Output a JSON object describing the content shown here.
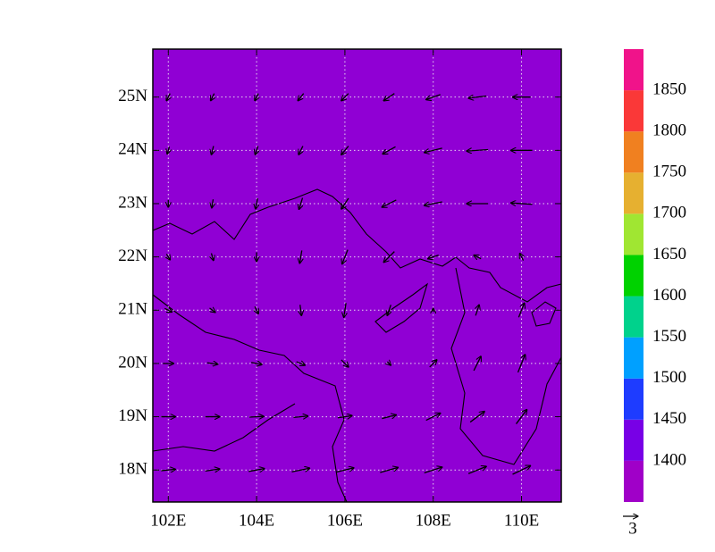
{
  "chart_data": {
    "type": "vector",
    "xlim": [
      101.65,
      110.9
    ],
    "ylim": [
      17.4,
      25.9
    ],
    "xticks": [
      {
        "value": 102,
        "label": "102E"
      },
      {
        "value": 104,
        "label": "104E"
      },
      {
        "value": 106,
        "label": "106E"
      },
      {
        "value": 108,
        "label": "108E"
      },
      {
        "value": 110,
        "label": "110E"
      }
    ],
    "yticks": [
      {
        "value": 18,
        "label": "18N"
      },
      {
        "value": 19,
        "label": "19N"
      },
      {
        "value": 20,
        "label": "20N"
      },
      {
        "value": 21,
        "label": "21N"
      },
      {
        "value": 22,
        "label": "22N"
      },
      {
        "value": 23,
        "label": "23N"
      },
      {
        "value": 24,
        "label": "24N"
      },
      {
        "value": 25,
        "label": "25N"
      }
    ],
    "grid": true,
    "field_color": "#9000d4",
    "vector_color": "#000000",
    "lons": [
      102,
      103,
      104,
      105,
      106,
      107,
      108,
      109,
      110
    ],
    "lats": [
      25,
      24,
      23,
      22,
      21,
      20,
      19,
      18
    ],
    "u": [
      [
        -0.5,
        -0.5,
        -0.5,
        -0.8,
        -1,
        -1.5,
        -2,
        -2.5,
        -2.5
      ],
      [
        -0.3,
        -0.3,
        -0.4,
        -0.6,
        -1,
        -1.8,
        -2.5,
        -3,
        -3
      ],
      [
        0,
        -0.2,
        -0.3,
        -0.5,
        -1,
        -2,
        -2.5,
        -3,
        -3
      ],
      [
        0.5,
        0.3,
        0,
        -0.3,
        -0.8,
        -1.5,
        -1.5,
        -1,
        -0.5
      ],
      [
        1,
        0.8,
        0.5,
        0.2,
        -0.3,
        -0.5,
        0,
        0.5,
        0.8
      ],
      [
        1.5,
        1.5,
        1.5,
        1.2,
        1,
        0.5,
        1,
        1,
        1
      ],
      [
        2,
        2,
        2,
        2,
        2,
        2,
        2,
        2,
        1.5
      ],
      [
        2,
        2,
        2.2,
        2.5,
        2.5,
        2.5,
        2.5,
        2.5,
        2.5
      ]
    ],
    "v": [
      [
        -1,
        -1,
        -1,
        -1,
        -1,
        -1,
        -0.7,
        -0.3,
        0
      ],
      [
        -1,
        -1.2,
        -1.2,
        -1.2,
        -1.2,
        -1,
        -0.6,
        -0.2,
        0
      ],
      [
        -1,
        -1.2,
        -1.5,
        -1.6,
        -1.5,
        -1,
        -0.5,
        0,
        0.2
      ],
      [
        -0.8,
        -1,
        -1.3,
        -1.8,
        -2,
        -1.5,
        -0.5,
        0.5,
        1
      ],
      [
        -0.5,
        -0.6,
        -1,
        -1.5,
        -2,
        -1.5,
        0.5,
        1.5,
        2
      ],
      [
        0,
        -0.2,
        -0.3,
        -0.5,
        -1,
        -0.5,
        1,
        2,
        2.5
      ],
      [
        0,
        0,
        0.1,
        0.2,
        0.3,
        0.5,
        1,
        1.5,
        2
      ],
      [
        0.2,
        0.3,
        0.4,
        0.5,
        0.6,
        0.7,
        0.8,
        1,
        1.2
      ]
    ],
    "reference_vector": 3,
    "colorbar": {
      "levels": [
        1400,
        1450,
        1500,
        1550,
        1600,
        1650,
        1700,
        1750,
        1800,
        1850
      ],
      "colors": [
        "#a000c8",
        "#7800e6",
        "#1e3cff",
        "#00a0ff",
        "#00d28c",
        "#00d200",
        "#a0e632",
        "#e6b030",
        "#f08020",
        "#fa3838",
        "#f0138a"
      ]
    }
  }
}
